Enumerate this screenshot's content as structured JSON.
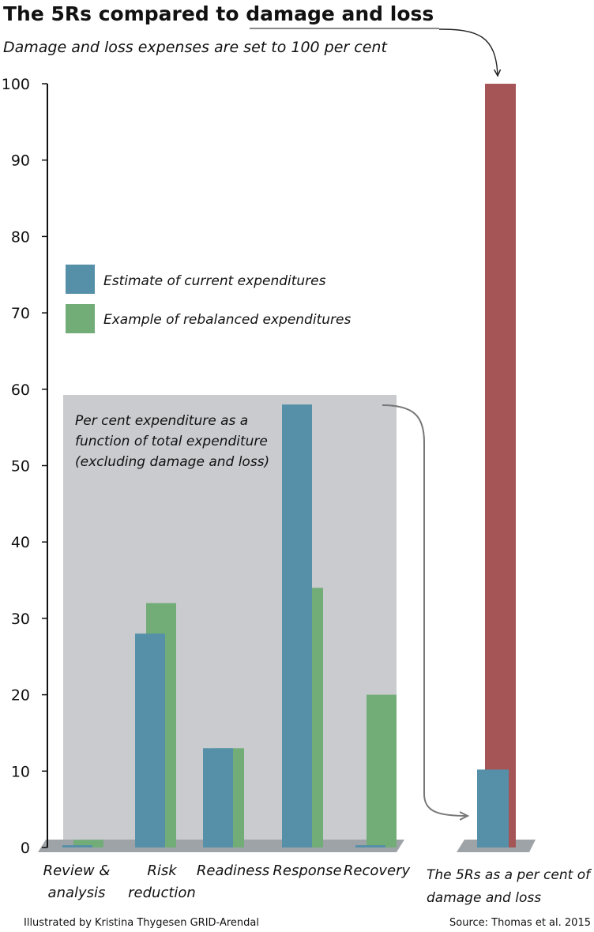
{
  "chart_data": {
    "type": "bar",
    "title": "The 5Rs compared to damage and loss",
    "subtitle": "Damage and loss expenses are set to 100 per cent",
    "ylim": [
      0,
      100
    ],
    "yticks": [
      0,
      10,
      20,
      30,
      40,
      50,
      60,
      70,
      80,
      90,
      100
    ],
    "categories": [
      "Review & analysis",
      "Risk reduction",
      "Readiness",
      "Response",
      "Recovery"
    ],
    "category_lines": [
      [
        "Review &",
        "analysis"
      ],
      [
        "Risk",
        "reduction"
      ],
      [
        "Readiness"
      ],
      [
        "Response"
      ],
      [
        "Recovery"
      ]
    ],
    "series": [
      {
        "name": "Estimate of current expenditures",
        "color": "#5590a8",
        "values": [
          0.3,
          28,
          13,
          58,
          0.3
        ]
      },
      {
        "name": "Example of rebalanced expenditures",
        "color": "#72ad78",
        "values": [
          1,
          32,
          13,
          34,
          20
        ]
      }
    ],
    "inset_note": [
      "Per cent expenditure as a",
      "function of total expenditure",
      "(excluding damage and loss)"
    ],
    "comparison": {
      "label_lines": [
        "The 5Rs as a per cent of",
        "damage and loss"
      ],
      "damage_and_loss": {
        "value": 100,
        "color": "#a65557"
      },
      "five_rs": {
        "value": 10.2,
        "color": "#5590a8"
      }
    }
  },
  "footer": {
    "credit": "Illustrated by Kristina Thygesen GRID-Arendal",
    "source": "Source: Thomas et al. 2015"
  }
}
